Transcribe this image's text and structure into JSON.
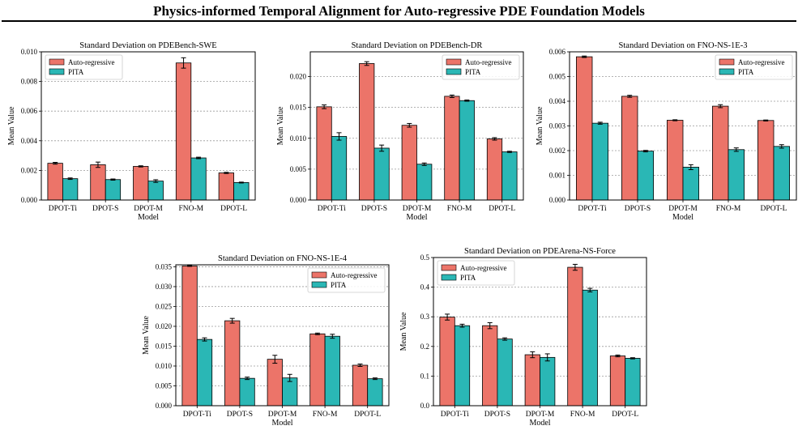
{
  "page": {
    "title": "Physics-informed Temporal Alignment for Auto-regressive PDE Foundation Models"
  },
  "colors": {
    "auto_regressive": "#EC7469",
    "pita": "#2AB7B5",
    "bar_edge": "#000000",
    "grid": "#9a9a9a"
  },
  "chart_data": [
    {
      "type": "bar",
      "title": "Standard Deviation on PDEBench-SWE",
      "xlabel": "Model",
      "ylabel": "Mean Value",
      "categories": [
        "DPOT-Ti",
        "DPOT-S",
        "DPOT-M",
        "FNO-M",
        "DPOT-L"
      ],
      "ylim": [
        0,
        0.01
      ],
      "yticks": [
        0,
        0.002,
        0.004,
        0.006,
        0.008,
        0.01
      ],
      "ytick_labels": [
        "0.000",
        "0.002",
        "0.004",
        "0.006",
        "0.008",
        "0.010"
      ],
      "grid": "y-dashed",
      "legend_position": "top-left",
      "series": [
        {
          "name": "Auto-regressive",
          "values": [
            0.00248,
            0.00238,
            0.00227,
            0.00925,
            0.00183
          ],
          "errors": [
            6e-05,
            0.00018,
            4e-05,
            0.00035,
            4e-05
          ]
        },
        {
          "name": "PITA",
          "values": [
            0.00144,
            0.00138,
            0.00128,
            0.00284,
            0.00118
          ],
          "errors": [
            5e-05,
            4e-05,
            9e-05,
            5e-05,
            3e-05
          ]
        }
      ]
    },
    {
      "type": "bar",
      "title": "Standard Deviation on PDEBench-DR",
      "xlabel": "Model",
      "ylabel": "Mean Value",
      "categories": [
        "DPOT-Ti",
        "DPOT-S",
        "DPOT-M",
        "FNO-M",
        "DPOT-L"
      ],
      "ylim": [
        0,
        0.024
      ],
      "yticks": [
        0,
        0.005,
        0.01,
        0.015,
        0.02
      ],
      "ytick_labels": [
        "0.000",
        "0.005",
        "0.010",
        "0.015",
        "0.020"
      ],
      "grid": "y-dashed",
      "legend_position": "top-right",
      "series": [
        {
          "name": "Auto-regressive",
          "values": [
            0.0151,
            0.0221,
            0.0121,
            0.0168,
            0.0099
          ],
          "errors": [
            0.0003,
            0.0003,
            0.0003,
            0.0002,
            0.0002
          ]
        },
        {
          "name": "PITA",
          "values": [
            0.0103,
            0.0084,
            0.0058,
            0.0161,
            0.0078
          ],
          "errors": [
            0.0006,
            0.0005,
            0.0002,
            0.0001,
            0.0001
          ]
        }
      ]
    },
    {
      "type": "bar",
      "title": "Standard Deviation on FNO-NS-1E-3",
      "xlabel": "Model",
      "ylabel": "Mean Value",
      "categories": [
        "DPOT-Ti",
        "DPOT-S",
        "DPOT-M",
        "FNO-M",
        "DPOT-L"
      ],
      "ylim": [
        0,
        0.006
      ],
      "yticks": [
        0,
        0.001,
        0.002,
        0.003,
        0.004,
        0.005,
        0.006
      ],
      "ytick_labels": [
        "0.000",
        "0.001",
        "0.002",
        "0.003",
        "0.004",
        "0.005",
        "0.006"
      ],
      "grid": "y-dashed",
      "legend_position": "top-right",
      "series": [
        {
          "name": "Auto-regressive",
          "values": [
            0.0058,
            0.0042,
            0.00323,
            0.0038,
            0.00322
          ],
          "errors": [
            3e-05,
            4e-05,
            2e-05,
            6e-05,
            2e-05
          ]
        },
        {
          "name": "PITA",
          "values": [
            0.00311,
            0.00198,
            0.00133,
            0.00204,
            0.00217
          ],
          "errors": [
            4e-05,
            3e-05,
            0.0001,
            7e-05,
            7e-05
          ]
        }
      ]
    },
    {
      "type": "bar",
      "title": "Standard Deviation on FNO-NS-1E-4",
      "xlabel": "Model",
      "ylabel": "Mean Value",
      "categories": [
        "DPOT-Ti",
        "DPOT-S",
        "DPOT-M",
        "FNO-M",
        "DPOT-L"
      ],
      "ylim": [
        0,
        0.0355
      ],
      "yticks": [
        0,
        0.005,
        0.01,
        0.015,
        0.02,
        0.025,
        0.03,
        0.035
      ],
      "ytick_labels": [
        "0.000",
        "0.005",
        "0.010",
        "0.015",
        "0.020",
        "0.025",
        "0.030",
        "0.035"
      ],
      "grid": "y-dashed",
      "legend_position": "top-right",
      "series": [
        {
          "name": "Auto-regressive",
          "values": [
            0.0352,
            0.0214,
            0.0117,
            0.0181,
            0.0102
          ],
          "errors": [
            0.0001,
            0.0006,
            0.001,
            0.0002,
            0.0003
          ]
        },
        {
          "name": "PITA",
          "values": [
            0.0167,
            0.0069,
            0.007,
            0.0175,
            0.0068
          ],
          "errors": [
            0.0004,
            0.0003,
            0.0009,
            0.0005,
            0.0002
          ]
        }
      ]
    },
    {
      "type": "bar",
      "title": "Standard Deviation on PDEArena-NS-Force",
      "xlabel": "Model",
      "ylabel": "Mean Value",
      "categories": [
        "DPOT-Ti",
        "DPOT-S",
        "DPOT-M",
        "FNO-M",
        "DPOT-L"
      ],
      "ylim": [
        0,
        0.5
      ],
      "yticks": [
        0,
        0.1,
        0.2,
        0.3,
        0.4,
        0.5
      ],
      "ytick_labels": [
        "0.0",
        "0.1",
        "0.2",
        "0.3",
        "0.4",
        "0.5"
      ],
      "grid": "y-dashed",
      "legend_position": "top-left",
      "series": [
        {
          "name": "Auto-regressive",
          "values": [
            0.299,
            0.27,
            0.172,
            0.467,
            0.168
          ],
          "errors": [
            0.01,
            0.01,
            0.01,
            0.01,
            0.003
          ]
        },
        {
          "name": "PITA",
          "values": [
            0.27,
            0.225,
            0.163,
            0.39,
            0.16
          ],
          "errors": [
            0.005,
            0.004,
            0.012,
            0.006,
            0.002
          ]
        }
      ]
    }
  ]
}
